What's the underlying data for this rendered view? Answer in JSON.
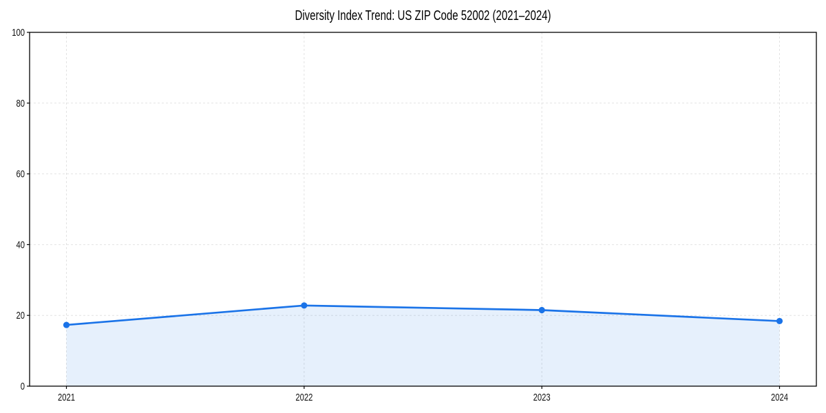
{
  "chart_data": {
    "type": "area",
    "title": "Diversity Index Trend: US ZIP Code 52002 (2021–2024)",
    "categories": [
      "2021",
      "2022",
      "2023",
      "2024"
    ],
    "series": [
      {
        "name": "Diversity Index",
        "values": [
          17.3,
          22.8,
          21.5,
          18.4
        ]
      }
    ],
    "xlabel": "",
    "ylabel": "",
    "ylim": [
      0,
      100
    ],
    "yticks": [
      0,
      20,
      40,
      60,
      80,
      100
    ],
    "grid": true,
    "grid_style": "dashed",
    "legend_position": "none",
    "line_color": "#1a73e8",
    "marker": "circle",
    "fill_color": "#1a73e8",
    "fill_opacity": 0.11,
    "spine_color": "#000000",
    "background_color": "#ffffff"
  }
}
